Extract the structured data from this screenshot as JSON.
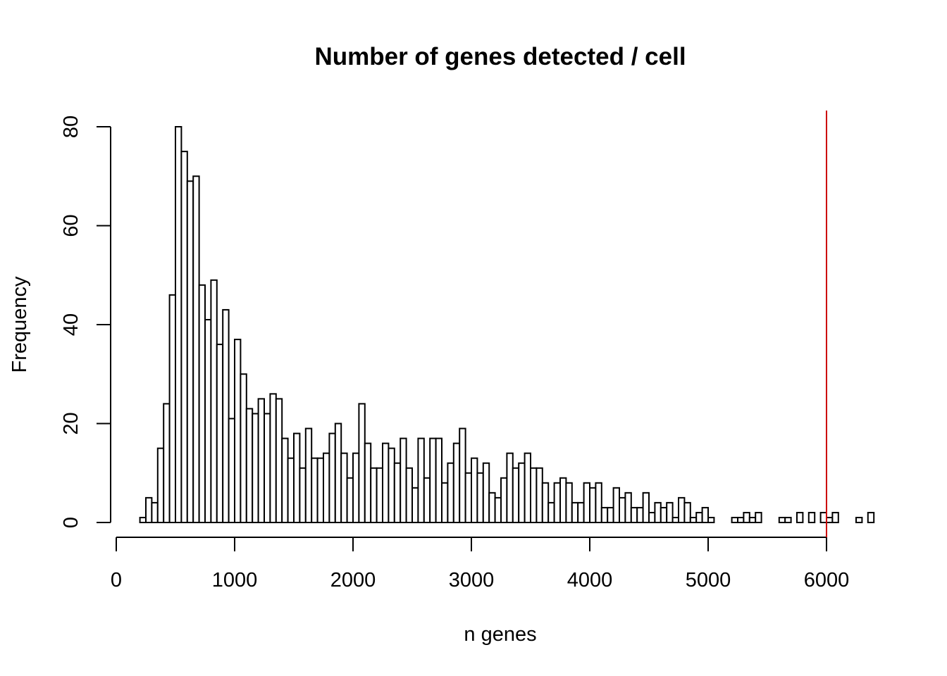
{
  "chart_data": {
    "type": "bar",
    "title": "Number of genes detected / cell",
    "xlabel": "n genes",
    "ylabel": "Frequency",
    "bin_width": 50,
    "bin_start": 200,
    "values": [
      1,
      5,
      4,
      15,
      24,
      46,
      80,
      75,
      69,
      70,
      48,
      41,
      49,
      36,
      43,
      21,
      37,
      30,
      23,
      22,
      25,
      22,
      26,
      25,
      17,
      13,
      18,
      11,
      19,
      13,
      13,
      14,
      18,
      20,
      14,
      9,
      14,
      24,
      16,
      11,
      11,
      16,
      15,
      12,
      17,
      11,
      7,
      17,
      9,
      17,
      17,
      8,
      12,
      16,
      19,
      10,
      13,
      10,
      12,
      6,
      5,
      9,
      14,
      11,
      12,
      14,
      11,
      11,
      8,
      4,
      8,
      9,
      8,
      4,
      4,
      8,
      7,
      8,
      3,
      3,
      7,
      5,
      6,
      3,
      3,
      6,
      2,
      4,
      3,
      4,
      1,
      5,
      4,
      1,
      2,
      3,
      1,
      0,
      0,
      0,
      1,
      1,
      2,
      1,
      2,
      0,
      0,
      0,
      1,
      1,
      0,
      2,
      0,
      2,
      0,
      2,
      1,
      2,
      0,
      0,
      0,
      1,
      0,
      2
    ],
    "xlim": [
      0,
      6300
    ],
    "ylim": [
      0,
      80
    ],
    "x_ticks": [
      "0",
      "1000",
      "2000",
      "3000",
      "4000",
      "5000",
      "6000"
    ],
    "y_ticks": [
      "0",
      "20",
      "40",
      "60",
      "80"
    ],
    "cutoff_line": 6000,
    "cutoff_color": "#cc0000",
    "grid": false
  }
}
